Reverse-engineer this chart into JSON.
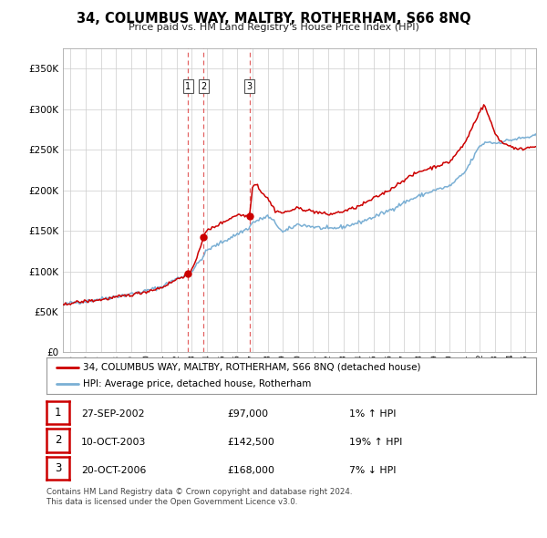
{
  "title": "34, COLUMBUS WAY, MALTBY, ROTHERHAM, S66 8NQ",
  "subtitle": "Price paid vs. HM Land Registry's House Price Index (HPI)",
  "ylabel_ticks": [
    "£0",
    "£50K",
    "£100K",
    "£150K",
    "£200K",
    "£250K",
    "£300K",
    "£350K"
  ],
  "ytick_values": [
    0,
    50000,
    100000,
    150000,
    200000,
    250000,
    300000,
    350000
  ],
  "ylim": [
    0,
    375000
  ],
  "xlim_start": 1994.5,
  "xlim_end": 2025.7,
  "sales": [
    {
      "date_num": 2002.74,
      "price": 97000,
      "label": "1"
    },
    {
      "date_num": 2003.78,
      "price": 142500,
      "label": "2"
    },
    {
      "date_num": 2006.8,
      "price": 168000,
      "label": "3"
    }
  ],
  "sale_vline_color": "#e05050",
  "sale_marker_color": "#cc0000",
  "hpi_line_color": "#7aafd4",
  "price_line_color": "#cc0000",
  "legend_entries": [
    "34, COLUMBUS WAY, MALTBY, ROTHERHAM, S66 8NQ (detached house)",
    "HPI: Average price, detached house, Rotherham"
  ],
  "table_rows": [
    {
      "num": "1",
      "date": "27-SEP-2002",
      "price": "£97,000",
      "hpi": "1% ↑ HPI"
    },
    {
      "num": "2",
      "date": "10-OCT-2003",
      "price": "£142,500",
      "hpi": "19% ↑ HPI"
    },
    {
      "num": "3",
      "date": "20-OCT-2006",
      "price": "£168,000",
      "hpi": "7% ↓ HPI"
    }
  ],
  "footer": "Contains HM Land Registry data © Crown copyright and database right 2024.\nThis data is licensed under the Open Government Licence v3.0.",
  "bg_color": "#ffffff",
  "grid_color": "#cccccc",
  "xtick_years": [
    1995,
    1996,
    1997,
    1998,
    1999,
    2000,
    2001,
    2002,
    2003,
    2004,
    2005,
    2006,
    2007,
    2008,
    2009,
    2010,
    2011,
    2012,
    2013,
    2014,
    2015,
    2016,
    2017,
    2018,
    2019,
    2020,
    2021,
    2022,
    2023,
    2024,
    2025
  ]
}
